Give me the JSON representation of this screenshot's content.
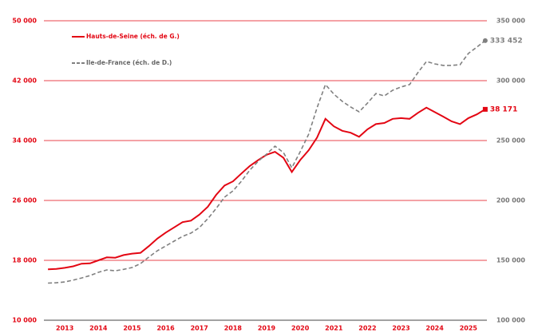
{
  "chart_data": {
    "type": "line",
    "x": [
      2013,
      2013.25,
      2013.5,
      2013.75,
      2014,
      2014.25,
      2014.5,
      2014.75,
      2015,
      2015.25,
      2015.5,
      2015.75,
      2016,
      2016.25,
      2016.5,
      2016.75,
      2017,
      2017.25,
      2017.5,
      2017.75,
      2018,
      2018.25,
      2018.5,
      2018.75,
      2019,
      2019.25,
      2019.5,
      2019.75,
      2020,
      2020.25,
      2020.5,
      2020.75,
      2021,
      2021.25,
      2021.5,
      2021.75,
      2022,
      2022.25,
      2022.5,
      2022.75,
      2023,
      2023.25,
      2023.5,
      2023.75,
      2024,
      2024.25,
      2024.5,
      2024.75,
      2025,
      2025.25,
      2025.5,
      2025.75,
      2026
    ],
    "xlim": [
      2012.95,
      2026.05
    ],
    "xticks": [
      {
        "value": 2013.5,
        "label": "2013"
      },
      {
        "value": 2014.5,
        "label": "2014"
      },
      {
        "value": 2015.5,
        "label": "2015"
      },
      {
        "value": 2016.5,
        "label": "2016"
      },
      {
        "value": 2017.5,
        "label": "2017"
      },
      {
        "value": 2018.5,
        "label": "2018"
      },
      {
        "value": 2019.5,
        "label": "2019"
      },
      {
        "value": 2020.5,
        "label": "2020"
      },
      {
        "value": 2021.5,
        "label": "2021"
      },
      {
        "value": 2022.5,
        "label": "2022"
      },
      {
        "value": 2023.5,
        "label": "2023"
      },
      {
        "value": 2024.5,
        "label": "2024"
      },
      {
        "value": 2025.5,
        "label": "2025"
      }
    ],
    "ylim": [
      10000,
      50000
    ],
    "yticks": [
      {
        "value": 10000,
        "label": "10 000"
      },
      {
        "value": 18000,
        "label": "18 000"
      },
      {
        "value": 26000,
        "label": "26 000"
      },
      {
        "value": 34000,
        "label": "34 000"
      },
      {
        "value": 42000,
        "label": "42 000"
      },
      {
        "value": 50000,
        "label": "50 000"
      }
    ],
    "y2lim": [
      100000,
      350000
    ],
    "y2ticks": [
      {
        "value": 100000,
        "label": "100 000"
      },
      {
        "value": 150000,
        "label": "150 000"
      },
      {
        "value": 200000,
        "label": "200 000"
      },
      {
        "value": 250000,
        "label": "250 000"
      },
      {
        "value": 300000,
        "label": "300 000"
      },
      {
        "value": 350000,
        "label": "350 000"
      }
    ],
    "grid": true,
    "legend": "upper left",
    "series": [
      {
        "name": "Hauts-de-Seine (éch. de G.)",
        "color": "#e30613",
        "dash": false,
        "values": [
          16800,
          16850,
          17000,
          17200,
          17550,
          17600,
          18000,
          18400,
          18350,
          18700,
          18900,
          19000,
          19900,
          20900,
          21700,
          22400,
          23100,
          23300,
          24100,
          25150,
          26750,
          28000,
          28550,
          29600,
          30600,
          31400,
          32100,
          32500,
          31700,
          29800,
          31400,
          32700,
          34400,
          36900,
          35900,
          35300,
          35050,
          34500,
          35500,
          36200,
          36350,
          36900,
          37000,
          36900,
          37700,
          38400,
          37800,
          37200,
          36560,
          36200,
          37000,
          37500,
          38171
        ],
        "value_labels": [
          null,
          null,
          null,
          null,
          null,
          null,
          null,
          null,
          null,
          null,
          null,
          null,
          null,
          null,
          null,
          null,
          null,
          null,
          null,
          null,
          null,
          null,
          null,
          null,
          null,
          null,
          null,
          null,
          null,
          null,
          null,
          null,
          null,
          null,
          null,
          null,
          null,
          null,
          null,
          null,
          null,
          null,
          null,
          null,
          null,
          null,
          null,
          null,
          null,
          null,
          null,
          null,
          "38 171"
        ]
      },
      {
        "name": "Ile-de-France (éch. de D.)",
        "color": "#808080",
        "dash": true,
        "axis": "y2",
        "values": [
          131000,
          131300,
          132000,
          133500,
          135300,
          137300,
          140000,
          142000,
          141300,
          142500,
          144000,
          147300,
          152700,
          158000,
          162000,
          166000,
          170000,
          172700,
          177300,
          184700,
          193300,
          202700,
          208000,
          216000,
          225300,
          232700,
          238700,
          245300,
          240000,
          227300,
          240700,
          255300,
          277300,
          296700,
          288700,
          282700,
          278000,
          274000,
          281300,
          289300,
          287300,
          292000,
          294700,
          296700,
          306700,
          316000,
          314000,
          312700,
          312700,
          313300,
          322700,
          328000,
          333452
        ],
        "value_labels": [
          null,
          null,
          null,
          null,
          null,
          null,
          null,
          null,
          null,
          null,
          null,
          null,
          null,
          null,
          null,
          null,
          null,
          null,
          null,
          null,
          null,
          null,
          null,
          null,
          null,
          null,
          null,
          null,
          null,
          null,
          null,
          null,
          null,
          null,
          null,
          null,
          null,
          null,
          null,
          null,
          null,
          null,
          null,
          null,
          null,
          null,
          null,
          null,
          null,
          null,
          null,
          null,
          "333 452"
        ]
      }
    ]
  }
}
